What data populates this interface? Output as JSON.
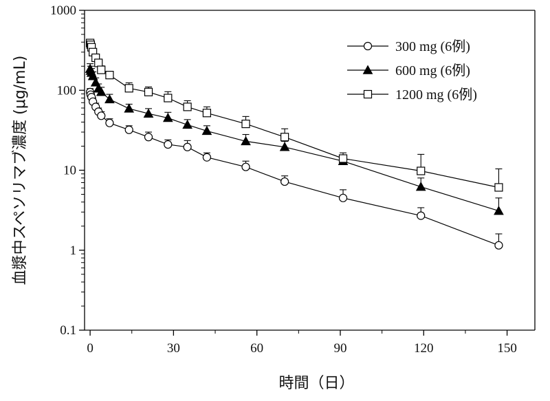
{
  "chart_data": {
    "type": "line",
    "xlabel": "時間（日）",
    "ylabel": "血漿中スペソリマブ濃度 (μg/mL)",
    "xlim": [
      -2,
      160
    ],
    "ylim": [
      0.1,
      1000
    ],
    "yscale": "log",
    "xticks": [
      0,
      30,
      60,
      90,
      120,
      150
    ],
    "xtick_labels": [
      "0",
      "30",
      "60",
      "90",
      "120",
      "150"
    ],
    "yticks": [
      0.1,
      1,
      10,
      100,
      1000
    ],
    "ytick_labels": [
      "0.1",
      "1",
      "10",
      "100",
      "1000"
    ],
    "legend_position": "top-right",
    "grid": false,
    "series": [
      {
        "name": "300 mg (6例)",
        "marker": "circle-open",
        "x": [
          0,
          0.2,
          0.5,
          1,
          2,
          3,
          4,
          7,
          14,
          21,
          28,
          35,
          42,
          56,
          70,
          91,
          119,
          147
        ],
        "y": [
          95,
          88,
          82,
          72,
          62,
          54,
          48,
          39,
          32,
          26,
          21,
          19.5,
          14.5,
          11,
          7.2,
          4.5,
          2.7,
          1.15
        ],
        "err": [
          10,
          9,
          8,
          8,
          7,
          6,
          6,
          5,
          4,
          4,
          3,
          4,
          2,
          2,
          1.3,
          1.2,
          0.7,
          0.45
        ]
      },
      {
        "name": "600 mg (6例)",
        "marker": "triangle-filled",
        "x": [
          0,
          0.2,
          0.5,
          1,
          2,
          3,
          4,
          7,
          14,
          21,
          28,
          35,
          42,
          56,
          70,
          91,
          119,
          147
        ],
        "y": [
          185,
          175,
          165,
          150,
          125,
          105,
          95,
          77,
          59,
          51,
          45,
          37,
          31,
          23,
          19.5,
          13,
          6.2,
          3.1
        ],
        "err": [
          30,
          25,
          22,
          20,
          18,
          15,
          14,
          12,
          8,
          8,
          8,
          6,
          5,
          5,
          3.5,
          2.5,
          1.8,
          1.4
        ]
      },
      {
        "name": "1200 mg (6例)",
        "marker": "square-open",
        "x": [
          0,
          0.2,
          0.5,
          1,
          2,
          3,
          4,
          7,
          14,
          21,
          28,
          35,
          42,
          56,
          70,
          91,
          119,
          147
        ],
        "y": [
          390,
          370,
          345,
          300,
          255,
          220,
          180,
          155,
          106,
          95,
          80,
          62,
          52,
          38,
          26,
          14,
          9.8,
          6.1
        ],
        "err": [
          40,
          38,
          35,
          32,
          28,
          25,
          22,
          18,
          18,
          15,
          16,
          12,
          10,
          9,
          7,
          2.5,
          6,
          4.3
        ]
      }
    ]
  }
}
